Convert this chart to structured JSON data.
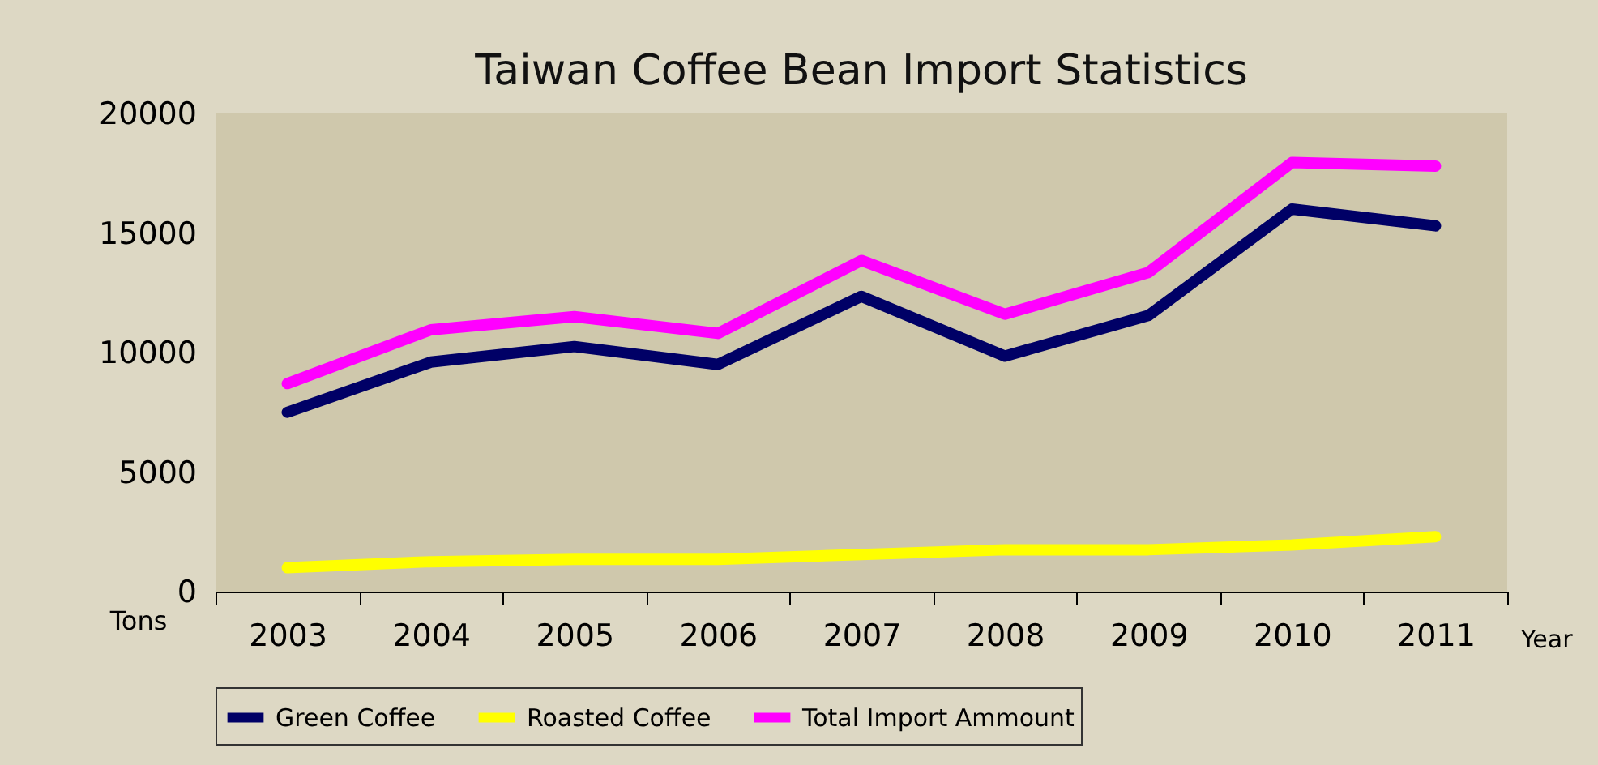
{
  "chart_data": {
    "type": "line",
    "title": "Taiwan Coffee Bean Import Statistics",
    "xlabel": "Year",
    "ylabel": "Tons",
    "categories": [
      "2003",
      "2004",
      "2005",
      "2006",
      "2007",
      "2008",
      "2009",
      "2010",
      "2011"
    ],
    "series": [
      {
        "name": "Green Coffee",
        "color": "#000066",
        "values": [
          7500,
          9600,
          10250,
          9500,
          12350,
          9850,
          11550,
          16000,
          15300
        ]
      },
      {
        "name": "Roasted Coffee",
        "color": "#ffff00",
        "values": [
          1000,
          1250,
          1350,
          1350,
          1550,
          1750,
          1750,
          1950,
          2300
        ]
      },
      {
        "name": "Total Import Ammount",
        "color": "#ff00ff",
        "values": [
          8700,
          10950,
          11500,
          10800,
          13850,
          11600,
          13350,
          17950,
          17800
        ]
      }
    ],
    "ylim": [
      0,
      20000
    ],
    "yticks": [
      0,
      5000,
      10000,
      15000,
      20000
    ],
    "grid": false,
    "legend": "bottom",
    "line_style": "solid"
  }
}
